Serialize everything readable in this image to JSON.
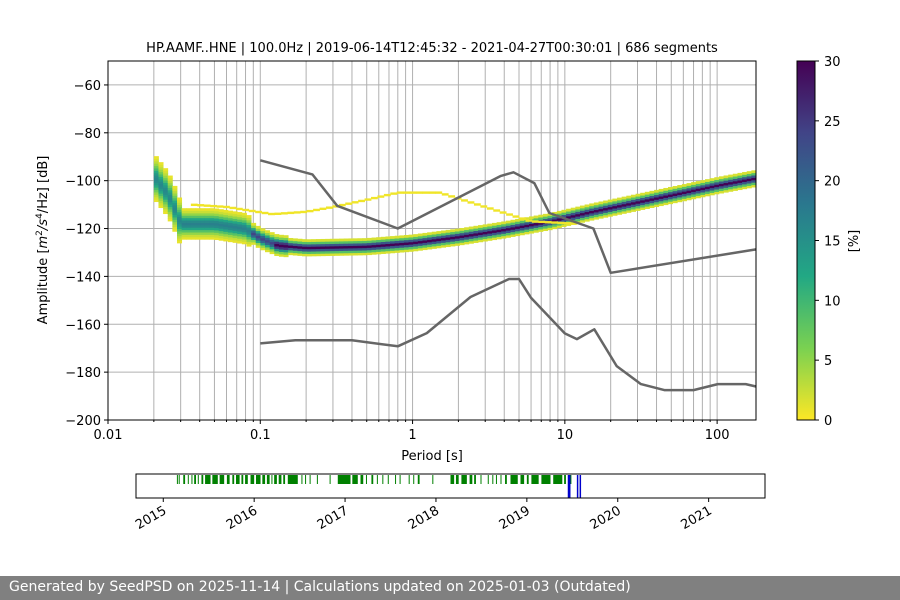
{
  "chart_data": {
    "type": "heatmap",
    "title": "HP.AAMF..HNE | 100.0Hz | 2019-06-14T12:45:32 - 2021-04-27T00:30:01 | 686 segments",
    "xlabel": "Period [s]",
    "ylabel": "Amplitude [m^2/s^4/Hz] [dB]",
    "ylabel_parts": {
      "pre": "Amplitude [",
      "m": "m",
      "two": "2",
      "s": "/s",
      "four": "4",
      "post": "/Hz] [dB]"
    },
    "x_scale": "log",
    "xlim": [
      0.01,
      180
    ],
    "ylim": [
      -200,
      -50
    ],
    "x_ticks": [
      0.01,
      0.1,
      1,
      10,
      100
    ],
    "x_tick_labels": [
      "0.01",
      "0.1",
      "1",
      "10",
      "100"
    ],
    "y_ticks": [
      -200,
      -180,
      -160,
      -140,
      -120,
      -100,
      -80,
      -60
    ],
    "y_tick_labels": [
      "−200",
      "−180",
      "−160",
      "−140",
      "−120",
      "−100",
      "−80",
      "−60"
    ],
    "grid": true,
    "colorbar": {
      "label": "[%]",
      "min": 0,
      "max": 30,
      "ticks": [
        0,
        5,
        10,
        15,
        20,
        25,
        30
      ],
      "tick_labels": [
        "0",
        "5",
        "10",
        "15",
        "20",
        "25",
        "30"
      ],
      "colormap": [
        "#fde725",
        "#7ad151",
        "#22a884",
        "#2a788e",
        "#414487",
        "#440154"
      ]
    },
    "noise_models": {
      "nhnm": [
        [
          0.1,
          -91.5
        ],
        [
          0.22,
          -97.4
        ],
        [
          0.32,
          -110.5
        ],
        [
          0.8,
          -120
        ],
        [
          3.8,
          -98
        ],
        [
          4.6,
          -96.5
        ],
        [
          6.3,
          -101
        ],
        [
          7.9,
          -113.5
        ],
        [
          15.4,
          -120
        ],
        [
          20,
          -138.5
        ],
        [
          180,
          -128.7
        ]
      ],
      "nlnm": [
        [
          0.1,
          -168
        ],
        [
          0.17,
          -166.7
        ],
        [
          0.4,
          -166.7
        ],
        [
          0.8,
          -169.2
        ],
        [
          1.24,
          -163.7
        ],
        [
          2.4,
          -148.6
        ],
        [
          4.3,
          -141.1
        ],
        [
          5,
          -141.1
        ],
        [
          6,
          -149
        ],
        [
          10,
          -163.8
        ],
        [
          12,
          -166.2
        ],
        [
          15.6,
          -162.1
        ],
        [
          21.9,
          -177.5
        ],
        [
          31.6,
          -185
        ],
        [
          45,
          -187.5
        ],
        [
          70,
          -187.5
        ],
        [
          101,
          -185
        ],
        [
          154,
          -185
        ],
        [
          180,
          -186
        ]
      ]
    },
    "psd_mode_curve": [
      [
        0.02,
        -98
      ],
      [
        0.025,
        -106
      ],
      [
        0.028,
        -113
      ],
      [
        0.03,
        -118
      ],
      [
        0.05,
        -118
      ],
      [
        0.08,
        -120
      ],
      [
        0.1,
        -124
      ],
      [
        0.13,
        -127
      ],
      [
        0.2,
        -128
      ],
      [
        0.5,
        -127.5
      ],
      [
        1,
        -126
      ],
      [
        2,
        -123.5
      ],
      [
        4,
        -120.5
      ],
      [
        8,
        -117
      ],
      [
        15,
        -113
      ],
      [
        30,
        -109
      ],
      [
        60,
        -105
      ],
      [
        100,
        -102
      ],
      [
        180,
        -99
      ]
    ],
    "outlier_branch": [
      [
        0.035,
        -110
      ],
      [
        0.06,
        -111
      ],
      [
        0.12,
        -114
      ],
      [
        0.2,
        -113
      ],
      [
        0.3,
        -111
      ],
      [
        0.5,
        -108
      ],
      [
        0.8,
        -105
      ],
      [
        1.5,
        -105
      ],
      [
        3,
        -111
      ],
      [
        6,
        -117
      ],
      [
        12,
        -118
      ]
    ],
    "availability": {
      "x_tick_labels": [
        "2015",
        "2016",
        "2017",
        "2018",
        "2019",
        "2020",
        "2021"
      ],
      "x_ticks": [
        2015,
        2016,
        2017,
        2018,
        2019,
        2020,
        2021
      ],
      "xlim": [
        2014.7,
        2021.62
      ],
      "data_periods": [
        [
          2015.15,
          2015.16
        ],
        [
          2015.17,
          2015.18
        ],
        [
          2015.22,
          2015.24
        ],
        [
          2015.27,
          2015.28
        ],
        [
          2015.31,
          2015.32
        ],
        [
          2015.34,
          2015.36
        ],
        [
          2015.38,
          2015.39
        ],
        [
          2015.42,
          2015.44
        ],
        [
          2015.46,
          2015.52
        ],
        [
          2015.54,
          2015.6
        ],
        [
          2015.62,
          2015.67
        ],
        [
          2015.7,
          2015.73
        ],
        [
          2015.76,
          2015.78
        ],
        [
          2015.8,
          2015.84
        ],
        [
          2015.86,
          2015.88
        ],
        [
          2015.9,
          2015.93
        ],
        [
          2015.96,
          2016.0
        ],
        [
          2016.02,
          2016.07
        ],
        [
          2016.09,
          2016.12
        ],
        [
          2016.14,
          2016.17
        ],
        [
          2016.19,
          2016.2
        ],
        [
          2016.22,
          2016.25
        ],
        [
          2016.27,
          2016.3
        ],
        [
          2016.32,
          2016.34
        ],
        [
          2016.37,
          2016.48
        ],
        [
          2016.52,
          2016.53
        ],
        [
          2016.56,
          2016.57
        ],
        [
          2016.61,
          2016.62
        ],
        [
          2016.69,
          2016.7
        ],
        [
          2016.83,
          2016.84
        ],
        [
          2016.92,
          2017.06
        ],
        [
          2017.08,
          2017.14
        ],
        [
          2017.17,
          2017.2
        ],
        [
          2017.23,
          2017.24
        ],
        [
          2017.29,
          2017.31
        ],
        [
          2017.35,
          2017.36
        ],
        [
          2017.41,
          2017.42
        ],
        [
          2017.47,
          2017.48
        ],
        [
          2017.55,
          2017.56
        ],
        [
          2017.6,
          2017.61
        ],
        [
          2017.7,
          2017.71
        ],
        [
          2017.75,
          2017.76
        ],
        [
          2017.8,
          2017.82
        ],
        [
          2017.96,
          2017.97
        ],
        [
          2018.16,
          2018.2
        ],
        [
          2018.22,
          2018.25
        ],
        [
          2018.28,
          2018.34
        ],
        [
          2018.37,
          2018.4
        ],
        [
          2018.42,
          2018.44
        ],
        [
          2018.49,
          2018.5
        ],
        [
          2018.57,
          2018.58
        ],
        [
          2018.62,
          2018.63
        ],
        [
          2018.66,
          2018.67
        ],
        [
          2018.71,
          2018.72
        ],
        [
          2018.76,
          2018.78
        ],
        [
          2018.82,
          2018.9
        ],
        [
          2018.93,
          2018.97
        ],
        [
          2019.0,
          2019.02
        ],
        [
          2019.05,
          2019.13
        ],
        [
          2019.16,
          2019.26
        ],
        [
          2019.29,
          2019.39
        ],
        [
          2019.41,
          2019.43
        ],
        [
          2019.47,
          2019.49
        ]
      ],
      "used_periods": [
        [
          2019.45,
          2019.48
        ],
        [
          2019.55,
          2019.56
        ],
        [
          2019.58,
          2019.59
        ]
      ],
      "data_color": "#008000",
      "used_color": "#0000cc"
    }
  },
  "footer": {
    "text": "Generated by SeedPSD on 2025-11-14 | Calculations updated on 2025-01-03 (Outdated)"
  }
}
